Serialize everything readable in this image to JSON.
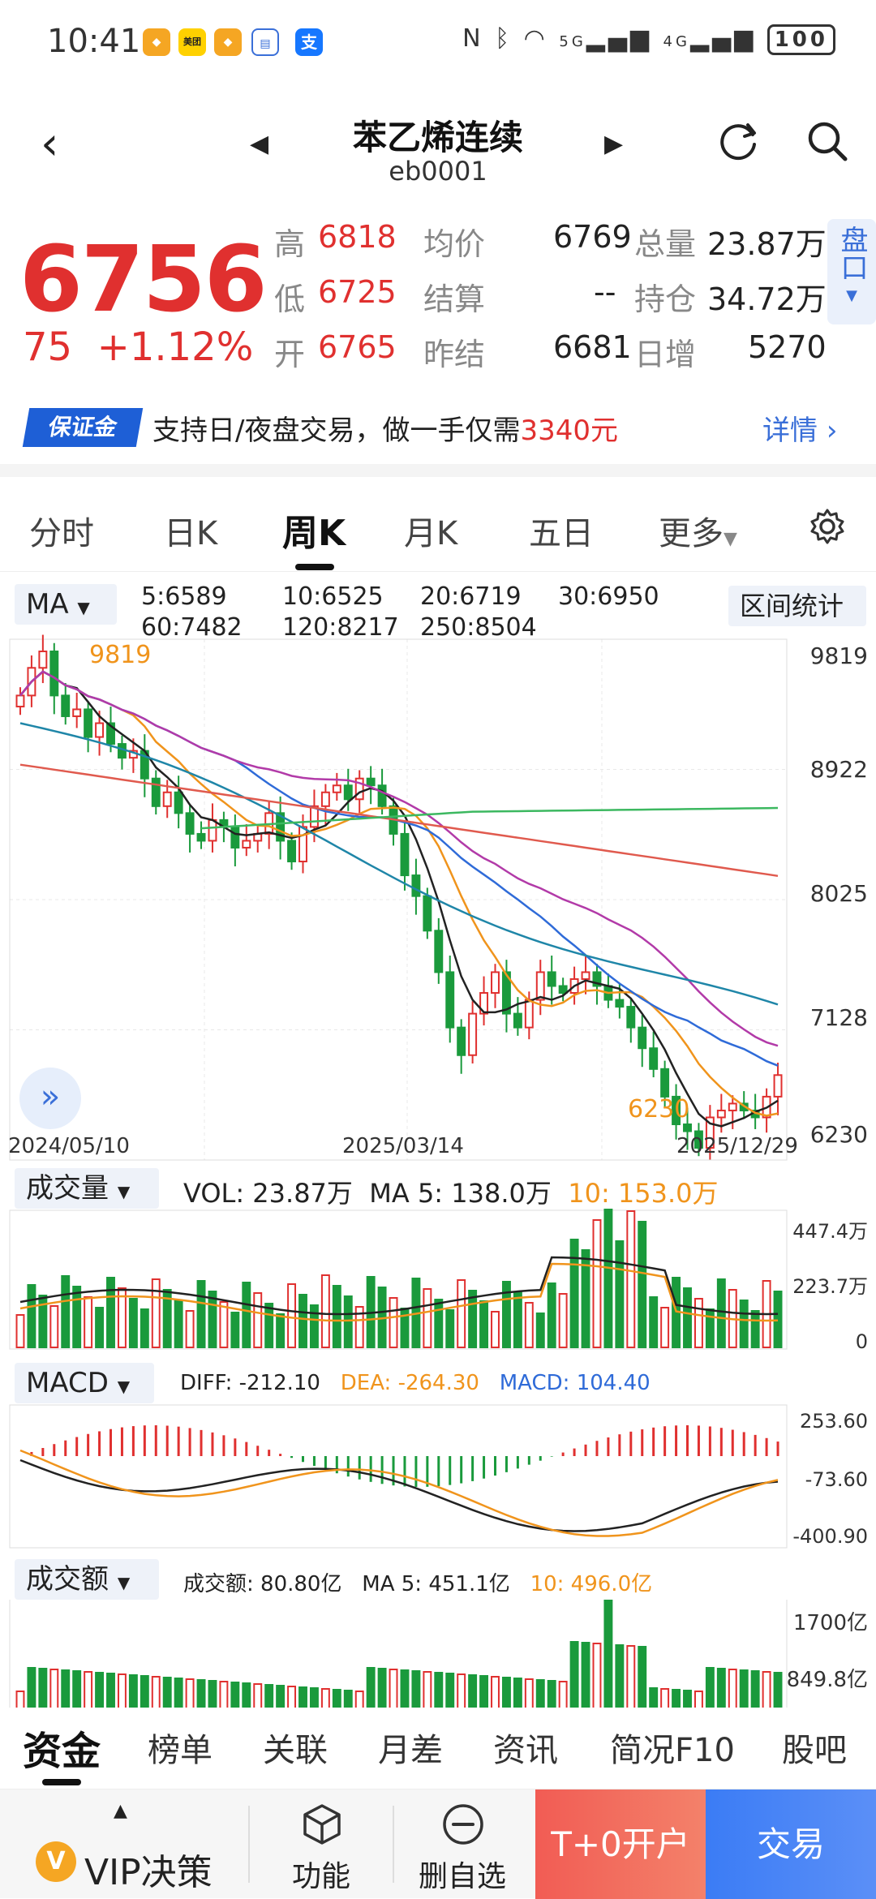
{
  "status": {
    "time": "10:41",
    "app_icons": [
      "sj",
      "美团",
      "sj",
      "cal",
      "支"
    ],
    "signal_5g": "5G",
    "signal_4g": "4G",
    "battery": "100"
  },
  "header": {
    "title": "苯乙烯连续",
    "code": "eb0001"
  },
  "quote": {
    "price": "6756",
    "change": "75",
    "change_pct": "+1.12%",
    "high_label": "高",
    "high": "6818",
    "low_label": "低",
    "low": "6725",
    "open_label": "开",
    "open": "6765",
    "avg_label": "均价",
    "avg": "6769",
    "settle_label": "结算",
    "settle": "--",
    "prev_settle_label": "昨结",
    "prev_settle": "6681",
    "volume_label": "总量",
    "volume": "23.87万",
    "oi_label": "持仓",
    "oi": "34.72万",
    "oi_change_label": "日增",
    "oi_change": "5270",
    "pankou": "盘口"
  },
  "banner": {
    "badge": "保证金",
    "text_prefix": "支持日/夜盘交易，做一手仅需",
    "text_amount": "3340元",
    "detail": "详情"
  },
  "period_tabs": [
    "分时",
    "日K",
    "周K",
    "月K",
    "五日",
    "更多"
  ],
  "main_chart": {
    "indicator": "MA",
    "ma": [
      {
        "label": "5:6589",
        "color": "#222222"
      },
      {
        "label": "10:6525",
        "color": "#f0941c"
      },
      {
        "label": "20:6719",
        "color": "#2f6bd8"
      },
      {
        "label": "30:6950",
        "color": "#b23aa8"
      },
      {
        "label": "60:7482",
        "color": "#1f86a8"
      },
      {
        "label": "120:8217",
        "color": "#e05a4e"
      },
      {
        "label": "250:8504",
        "color": "#3cb860"
      }
    ],
    "range_stats": "区间统计",
    "y_ticks": [
      "9819",
      "8922",
      "8025",
      "7128",
      "6230"
    ],
    "x_dates": [
      "2024/05/10",
      "2025/03/14",
      "2025/12/29"
    ],
    "high_mark": "9819",
    "low_mark": "6230"
  },
  "volume_chart": {
    "indicator": "成交量",
    "vol_label": "VOL:",
    "vol": "23.87万",
    "ma5_label": "MA 5:",
    "ma5": "138.0万",
    "ma10_label": "10:",
    "ma10": "153.0万",
    "y_ticks": [
      "447.4万",
      "223.7万",
      "0"
    ]
  },
  "macd_chart": {
    "indicator": "MACD",
    "diff_label": "DIFF:",
    "diff": "-212.10",
    "dea_label": "DEA:",
    "dea": "-264.30",
    "macd_label": "MACD:",
    "macd": "104.40",
    "y_ticks": [
      "253.60",
      "-73.60",
      "-400.90"
    ]
  },
  "turnover_chart": {
    "indicator": "成交额",
    "amt_label": "成交额:",
    "amt": "80.80亿",
    "ma5_label": "MA 5:",
    "ma5": "451.1亿",
    "ma10_label": "10:",
    "ma10": "496.0亿",
    "y_ticks": [
      "1700亿",
      "849.8亿"
    ]
  },
  "bottom_tabs": [
    "资金",
    "榜单",
    "关联",
    "月差",
    "资讯",
    "简况F10",
    "股吧"
  ],
  "actions": {
    "vip": "VIP决策",
    "func": "功能",
    "remove": "删自选",
    "open_account": "T+0开户",
    "trade": "交易"
  },
  "chart_data": {
    "type": "candlestick",
    "period": "weekly",
    "x_range": [
      "2024/05/10",
      "2025/12/29"
    ],
    "ylim": [
      6230,
      9819
    ],
    "highest": 9819,
    "lowest": 6230,
    "last_close": 6756,
    "ma_values": {
      "MA5": 6589,
      "MA10": 6525,
      "MA20": 6719,
      "MA30": 6950,
      "MA60": 7482,
      "MA120": 8217,
      "MA250": 8504
    }
  }
}
